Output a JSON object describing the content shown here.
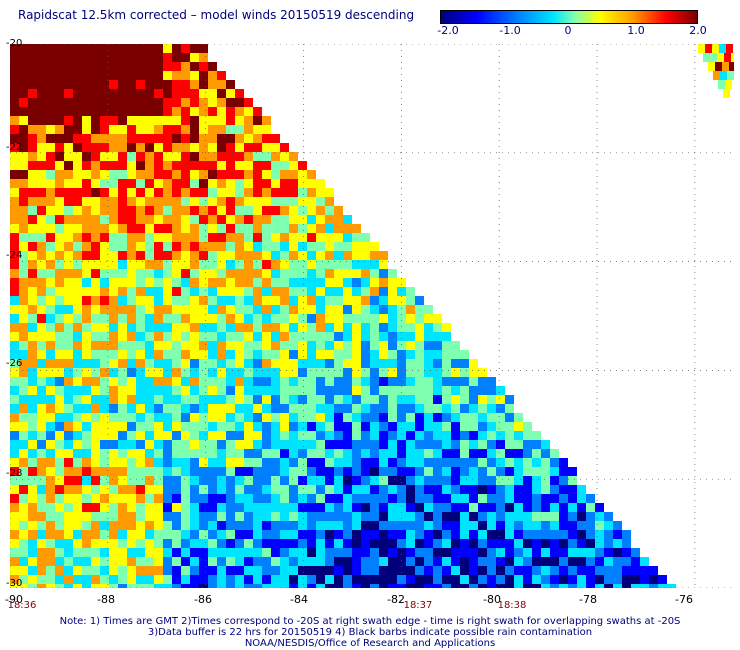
{
  "title": "Rapidscat 12.5km corrected – model winds 20150519 descending",
  "colorbar": {
    "ticks": [
      "-2.0",
      "-1.0",
      "0",
      "1.0",
      "2.0"
    ],
    "tick_values": [
      -2.0,
      -1.0,
      0,
      1.0,
      2.0
    ],
    "colors": [
      "#00007a",
      "#0000ff",
      "#0080ff",
      "#00e5ff",
      "#7fffb0",
      "#ffff00",
      "#ff9a00",
      "#ff0000",
      "#7a0000"
    ]
  },
  "map": {
    "lat_labels": [
      "-20",
      "-22",
      "-24",
      "-26",
      "-28",
      "-30"
    ],
    "lon_labels": [
      "-90",
      "-88",
      "-86",
      "-84",
      "-82",
      "-80",
      "-78",
      "-76"
    ],
    "lat_range": [
      -30,
      -20
    ],
    "lon_range": [
      -90,
      -75.2
    ],
    "grid": true,
    "pass_times": [
      {
        "lon": -89.6,
        "label": "18:36"
      },
      {
        "lon": -81.8,
        "label": "18:37"
      },
      {
        "lon": -79.7,
        "label": "18:38"
      }
    ]
  },
  "notes": {
    "line1": "Note: 1) Times are GMT 2)Times correspond to -20S at right swath edge - time is right swath for overlapping swaths at -20S",
    "line2": "3)Data buffer is 22 hrs for 20150519 4) Black barbs indicate possible rain contamination",
    "line3": "NOAA/NESDIS/Office of Research and Applications"
  }
}
